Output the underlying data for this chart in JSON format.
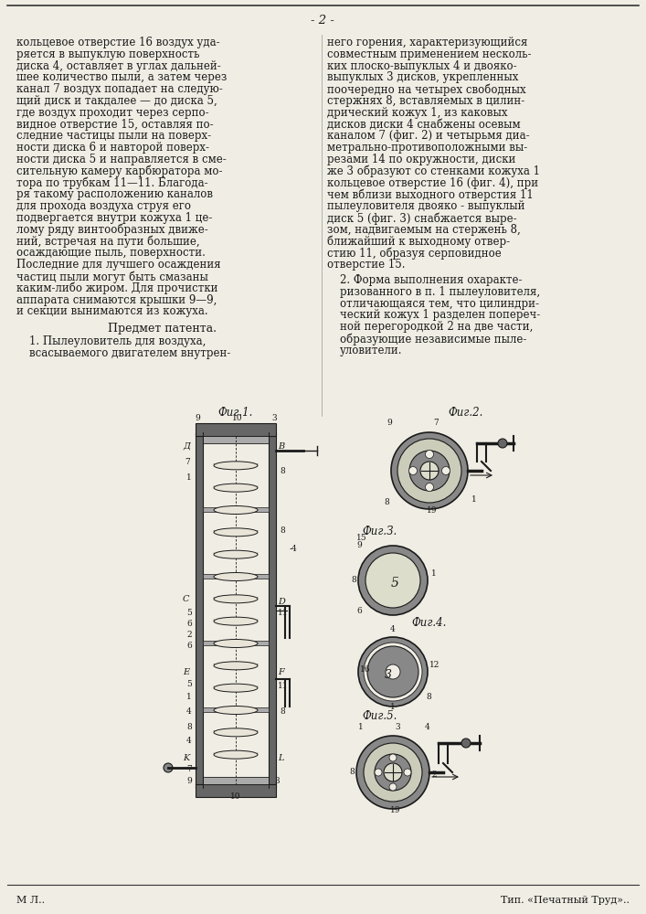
{
  "page_number": "- 2 -",
  "bg_color": "#f0ede4",
  "text_color": "#1a1a1a",
  "left_column_text": [
    "кольцевое отверстие 16 воздух уда-",
    "ряется в выпуклую поверхность",
    "диска 4, оставляет в углах дальней-",
    "шее количество пыли, а затем через",
    "канал 7 воздух попадает на следую-",
    "щий диск и такдалее — до диска 5,",
    "где воздух проходит через серпо-",
    "видное отверстие 15, оставляя по-",
    "следние частицы пыли на поверх-",
    "ности диска 6 и навторой поверх-",
    "ности диска 5 и направляется в сме-",
    "сительную камеру карбюратора мо-",
    "тора по трубкам 11—11. Благода-",
    "ря такому расположению каналов",
    "для прохода воздуха струя его",
    "подвергается внутри кожуха 1 це-",
    "лому ряду винтообразных движе-",
    "ний, встречая на пути большие,",
    "осаждающие пыль, поверхности.",
    "Последние для лучшего осаждения",
    "частиц пыли могут быть смазаны",
    "каким-либо жиром. Для прочистки",
    "аппарата снимаются крышки 9—9,",
    "и секции вынимаются из кожуха."
  ],
  "predmet_header": "Предмет патента.",
  "predmet_text_left": [
    "1. Пылеуловитель для воздуха,",
    "всасываемого двигателем внутрен-"
  ],
  "right_column_text": [
    "него горения, характеризующийся",
    "совместным применением несколь-",
    "ких плоско-выпуклых 4 и двояко-",
    "выпуклых 3 дисков, укрепленных",
    "поочередно на четырех свободных",
    "стержнях 8, вставляемых в цилин-",
    "дрический кожух 1, из каковых",
    "дисков диски 4 снабжены осевым",
    "каналом 7 (фиг. 2) и четырьмя диа-",
    "метрально-противоположными вы-",
    "резами 14 по окружности, диски",
    "же 3 образуют со стенками кожуха 1",
    "кольцевое отверстие 16 (фиг. 4), при",
    "чем вблизи выходного отверстия 11",
    "пылеуловителя двояко - выпуклый",
    "диск 5 (фиг. 3) снабжается выре-",
    "зом, надвигаемым на стержень 8,",
    "ближайший к выходному отвер-",
    "стию 11, образуя серповидное",
    "отверстие 15."
  ],
  "predmet_text_right": [
    "2. Форма выполнения охаракте-",
    "ризованного в п. 1 пылеуловителя,",
    "отличающаяся тем, что цилиндри-",
    "ческий кожух 1 разделен попереч-",
    "ной перегородкой 2 на две части,",
    "образующие независимые пыле-",
    "уловители."
  ],
  "fig1_label": "Фиг.1.",
  "fig2_label": "Фиг.2.",
  "fig3_label": "Фиг.З.",
  "fig4_label": "Фиг.4.",
  "fig5_label": "Фиг.5.",
  "footer_left": "М Л..",
  "footer_right": "Тип. «Печатный Труд»..",
  "font_size_body": 8.5,
  "line_color": "#1a1a1a",
  "hatch_color": "#555555",
  "top_border_color": "#333333"
}
